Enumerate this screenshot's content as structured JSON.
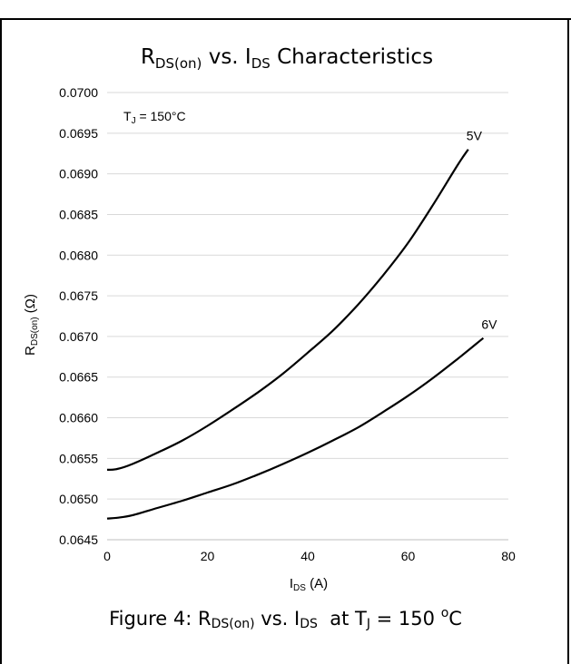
{
  "header_fragment": "",
  "caption": {
    "prefix": "Figure 4: R",
    "r_sub": "DS(on)",
    "mid": " vs. I",
    "i_sub": "DS",
    "tj_text": "  at T",
    "tj_sub": "J",
    "temp_value": " = 150 ",
    "deg_sup": "o",
    "unit": "C"
  },
  "chart_data": {
    "type": "line",
    "title": {
      "r": "R",
      "r_sub": "DS(on)",
      "vs": " vs. I",
      "i_sub": "DS",
      "rest": " Characteristics"
    },
    "xlabel": {
      "main": "I",
      "sub": "DS",
      "unit": " (A)"
    },
    "ylabel": {
      "main": "R",
      "sub": "DS(on)",
      "unit": " (Ω)"
    },
    "annotation": {
      "prefix": "T",
      "sub": "J",
      "rest": " = 150°C"
    },
    "xlim": [
      0,
      80
    ],
    "ylim": [
      0.0645,
      0.07
    ],
    "x_ticks": [
      "0",
      "20",
      "40",
      "60",
      "80"
    ],
    "y_ticks": [
      "0.0645",
      "0.0650",
      "0.0655",
      "0.0660",
      "0.0665",
      "0.0670",
      "0.0675",
      "0.0680",
      "0.0685",
      "0.0690",
      "0.0695",
      "0.0700"
    ],
    "grid": "horizontal",
    "series": [
      {
        "name": "5V",
        "x": [
          0,
          2,
          5,
          10,
          15,
          20,
          25,
          30,
          35,
          40,
          45,
          50,
          55,
          60,
          65,
          70,
          72
        ],
        "y": [
          0.06536,
          0.06537,
          0.06543,
          0.06557,
          0.06572,
          0.0659,
          0.0661,
          0.06631,
          0.06654,
          0.0668,
          0.06707,
          0.06739,
          0.06775,
          0.06815,
          0.06862,
          0.06912,
          0.0693
        ]
      },
      {
        "name": "6V",
        "x": [
          0,
          2,
          5,
          10,
          15,
          20,
          25,
          30,
          35,
          40,
          45,
          50,
          55,
          60,
          65,
          70,
          75
        ],
        "y": [
          0.06476,
          0.06477,
          0.0648,
          0.06489,
          0.06498,
          0.06508,
          0.06518,
          0.0653,
          0.06543,
          0.06557,
          0.06572,
          0.06588,
          0.06607,
          0.06627,
          0.06649,
          0.06673,
          0.06698
        ]
      }
    ]
  }
}
